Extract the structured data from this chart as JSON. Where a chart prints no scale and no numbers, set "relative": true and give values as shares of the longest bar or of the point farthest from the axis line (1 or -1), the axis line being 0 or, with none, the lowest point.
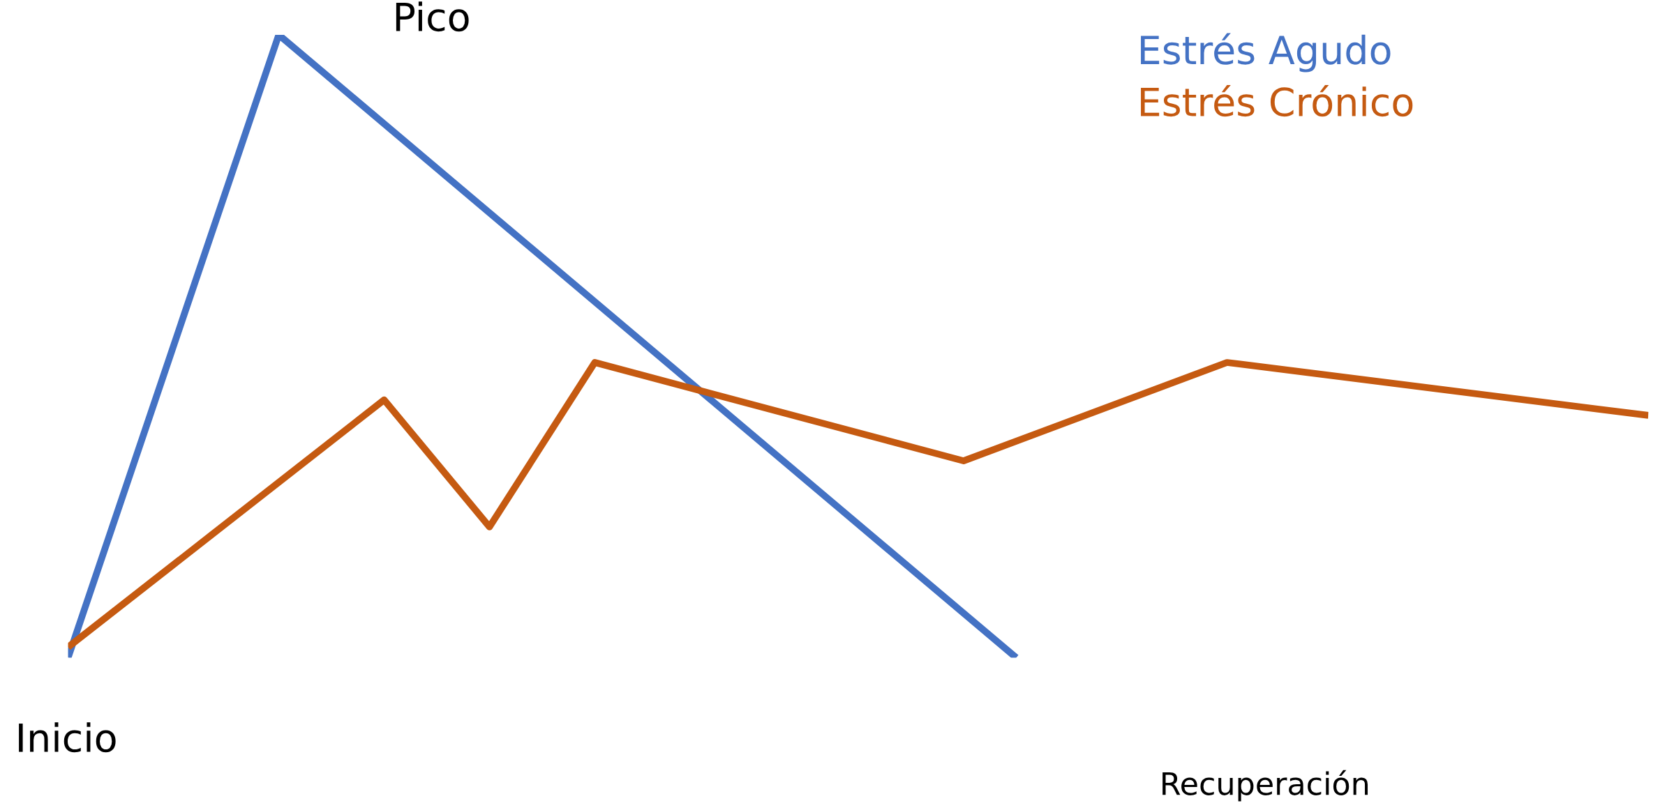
{
  "chart_data": {
    "type": "line",
    "relative": true,
    "line_style": "solid",
    "categories": [
      null,
      null,
      null,
      null,
      null,
      null,
      null,
      null,
      null,
      null,
      null,
      null,
      null,
      null,
      null,
      null,
      null,
      null,
      null,
      null,
      null,
      null,
      null,
      null,
      null,
      null,
      null,
      null,
      null,
      null,
      null
    ],
    "series": [
      {
        "name": "Estrés Agudo",
        "color": "#4472c4",
        "values": [
          0,
          null,
          null,
          null,
          1,
          null,
          null,
          null,
          null,
          null,
          null,
          null,
          null,
          null,
          null,
          null,
          null,
          null,
          0,
          null,
          null,
          null,
          null,
          null,
          null,
          null,
          null,
          null,
          null,
          null,
          null
        ]
      },
      {
        "name": "Estrés Crónico",
        "color": "#c55a11",
        "values": [
          0.017,
          null,
          null,
          null,
          null,
          null,
          0.414,
          null,
          0.21,
          null,
          0.474,
          null,
          null,
          null,
          null,
          null,
          null,
          0.316,
          null,
          null,
          null,
          null,
          0.474,
          null,
          null,
          null,
          null,
          null,
          null,
          null,
          0.389
        ]
      }
    ],
    "annotations": [
      "Pico",
      "Inicio",
      "Recuperación"
    ]
  }
}
